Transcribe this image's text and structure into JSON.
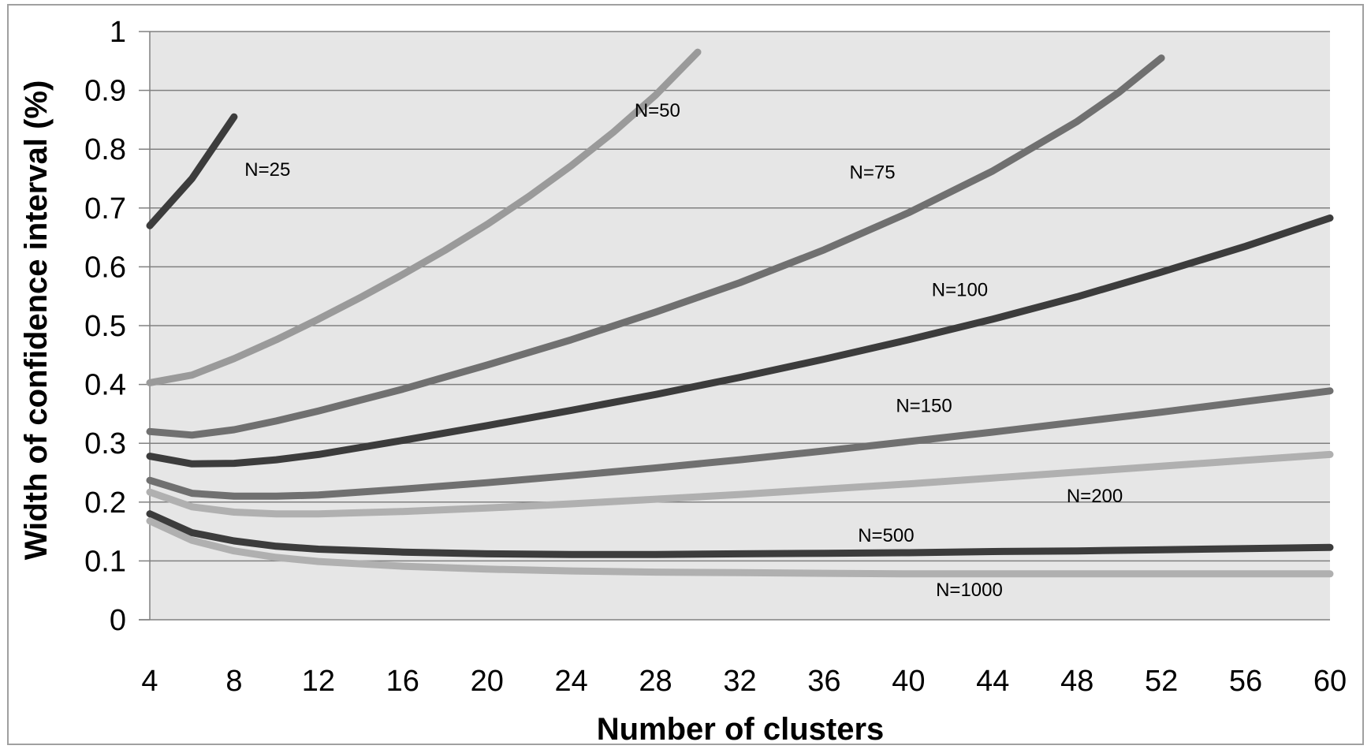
{
  "chart_data": {
    "type": "line",
    "title": "",
    "xlabel": "Number  of clusters",
    "ylabel": "Width of confidence interval (%)",
    "xlim": [
      4,
      60
    ],
    "ylim": [
      0,
      1
    ],
    "x_ticks": [
      "4",
      "8",
      "12",
      "16",
      "20",
      "24",
      "28",
      "32",
      "36",
      "40",
      "44",
      "48",
      "52",
      "56",
      "60"
    ],
    "y_ticks": [
      "0",
      "0.1",
      "0.2",
      "0.3",
      "0.4",
      "0.5",
      "0.6",
      "0.7",
      "0.8",
      "0.9",
      "1"
    ],
    "grid": true,
    "legend": "none",
    "colors": {
      "plot_bg": "#e6e6e6",
      "gridline": "#808080",
      "dark": "#3c3c3c",
      "medium": "#707070",
      "light": "#9a9a9a",
      "lighter": "#b0b0b0"
    },
    "series": [
      {
        "name": "N=25",
        "color": "#3c3c3c",
        "x": [
          4,
          6,
          8
        ],
        "y": [
          0.67,
          0.75,
          0.855
        ]
      },
      {
        "name": "N=50",
        "color": "#9a9a9a",
        "x": [
          4,
          6,
          8,
          10,
          12,
          14,
          16,
          18,
          20,
          22,
          24,
          26,
          28,
          30
        ],
        "y": [
          0.403,
          0.416,
          0.444,
          0.476,
          0.511,
          0.548,
          0.587,
          0.628,
          0.672,
          0.72,
          0.772,
          0.829,
          0.892,
          0.965
        ]
      },
      {
        "name": "N=75",
        "color": "#707070",
        "x": [
          4,
          6,
          8,
          10,
          12,
          16,
          20,
          24,
          28,
          32,
          36,
          40,
          44,
          48,
          50,
          52
        ],
        "y": [
          0.32,
          0.314,
          0.323,
          0.338,
          0.355,
          0.392,
          0.433,
          0.476,
          0.523,
          0.573,
          0.629,
          0.692,
          0.763,
          0.847,
          0.897,
          0.955
        ]
      },
      {
        "name": "N=100",
        "color": "#3c3c3c",
        "x": [
          4,
          6,
          8,
          10,
          12,
          16,
          20,
          24,
          28,
          32,
          36,
          40,
          44,
          48,
          52,
          56,
          60
        ],
        "y": [
          0.278,
          0.265,
          0.266,
          0.272,
          0.281,
          0.305,
          0.33,
          0.356,
          0.383,
          0.412,
          0.443,
          0.476,
          0.511,
          0.549,
          0.591,
          0.635,
          0.683
        ]
      },
      {
        "name": "N=150",
        "color": "#707070",
        "x": [
          4,
          6,
          8,
          10,
          12,
          16,
          20,
          24,
          28,
          32,
          36,
          40,
          44,
          48,
          52,
          56,
          60
        ],
        "y": [
          0.237,
          0.215,
          0.21,
          0.21,
          0.212,
          0.222,
          0.233,
          0.245,
          0.258,
          0.272,
          0.287,
          0.303,
          0.319,
          0.336,
          0.353,
          0.371,
          0.389
        ]
      },
      {
        "name": "N=200",
        "color": "#b0b0b0",
        "x": [
          4,
          6,
          8,
          10,
          12,
          16,
          20,
          24,
          28,
          32,
          36,
          40,
          44,
          48,
          52,
          56,
          60
        ],
        "y": [
          0.217,
          0.192,
          0.183,
          0.18,
          0.18,
          0.184,
          0.19,
          0.197,
          0.205,
          0.213,
          0.222,
          0.231,
          0.241,
          0.251,
          0.261,
          0.271,
          0.281
        ]
      },
      {
        "name": "N=500",
        "color": "#3c3c3c",
        "x": [
          4,
          6,
          8,
          10,
          12,
          16,
          20,
          24,
          28,
          32,
          36,
          40,
          44,
          48,
          52,
          56,
          60
        ],
        "y": [
          0.18,
          0.148,
          0.134,
          0.125,
          0.12,
          0.115,
          0.112,
          0.111,
          0.111,
          0.112,
          0.113,
          0.114,
          0.116,
          0.117,
          0.119,
          0.121,
          0.123
        ]
      },
      {
        "name": "N=1000",
        "color": "#b0b0b0",
        "x": [
          4,
          6,
          8,
          10,
          12,
          16,
          20,
          24,
          28,
          32,
          36,
          40,
          44,
          48,
          52,
          56,
          60
        ],
        "y": [
          0.168,
          0.135,
          0.117,
          0.106,
          0.099,
          0.091,
          0.086,
          0.083,
          0.081,
          0.08,
          0.079,
          0.078,
          0.078,
          0.078,
          0.078,
          0.078,
          0.078
        ]
      }
    ],
    "annotations": [
      {
        "text": "N=25",
        "x": 8.5,
        "y": 0.755
      },
      {
        "text": "N=50",
        "x": 27,
        "y": 0.855
      },
      {
        "text": "N=75",
        "x": 37.2,
        "y": 0.75
      },
      {
        "text": "N=100",
        "x": 41.1,
        "y": 0.55
      },
      {
        "text": "N=150",
        "x": 39.4,
        "y": 0.353
      },
      {
        "text": "N=200",
        "x": 47.5,
        "y": 0.2
      },
      {
        "text": "N=500",
        "x": 37.6,
        "y": 0.133
      },
      {
        "text": "N=1000",
        "x": 41.3,
        "y": 0.04
      }
    ]
  }
}
